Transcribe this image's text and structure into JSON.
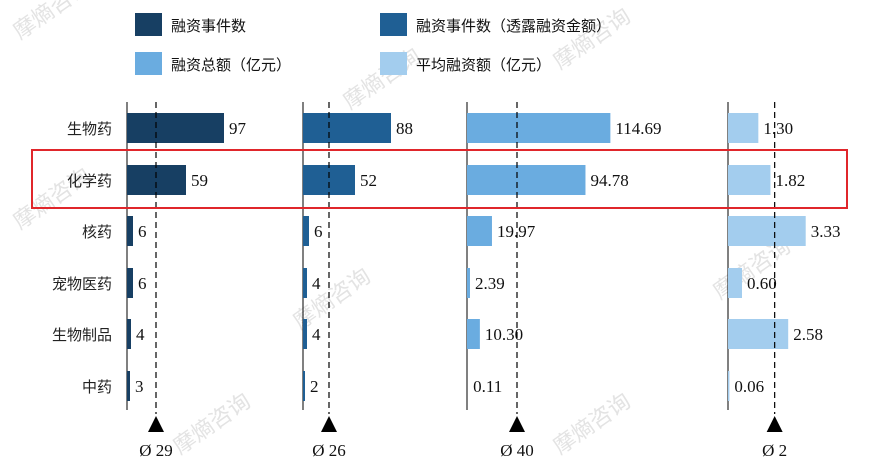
{
  "watermark": "摩熵咨询",
  "colors": {
    "series1": "#173f63",
    "series2": "#1f5f94",
    "series3": "#6aace0",
    "series4": "#a3cdee",
    "highlight": "#e0262b"
  },
  "chart_data": {
    "type": "bar",
    "orientation": "horizontal",
    "categories": [
      "生物药",
      "化学药",
      "核药",
      "宠物医药",
      "生物制品",
      "中药"
    ],
    "highlighted_category": "化学药",
    "legend_placement": "top",
    "series": [
      {
        "name": "融资事件数",
        "values": [
          97,
          59,
          6,
          6,
          4,
          3
        ],
        "labels": [
          "97",
          "59",
          "6",
          "6",
          "4",
          "3"
        ],
        "average": 29,
        "average_label": "Ø 29",
        "xlim": [
          0,
          130
        ]
      },
      {
        "name": "融资事件数（透露融资金额）",
        "values": [
          88,
          52,
          6,
          4,
          4,
          2
        ],
        "labels": [
          "88",
          "52",
          "6",
          "4",
          "4",
          "2"
        ],
        "average": 26,
        "average_label": "Ø 26",
        "xlim": [
          0,
          130
        ]
      },
      {
        "name": "融资总额（亿元）",
        "values": [
          114.69,
          94.78,
          19.97,
          2.39,
          10.3,
          0.11
        ],
        "labels": [
          "114.69",
          "94.78",
          "19.97",
          "2.39",
          "10.30",
          "0.11"
        ],
        "average": 40,
        "average_label": "Ø 40",
        "xlim": [
          0,
          140
        ]
      },
      {
        "name": "平均融资额（亿元）",
        "values": [
          1.3,
          1.82,
          3.33,
          0.6,
          2.58,
          0.06
        ],
        "labels": [
          "1.30",
          "1.82",
          "3.33",
          "0.60",
          "2.58",
          "0.06"
        ],
        "average": 2,
        "average_label": "Ø 2",
        "xlim": [
          0,
          4.5
        ]
      }
    ]
  }
}
